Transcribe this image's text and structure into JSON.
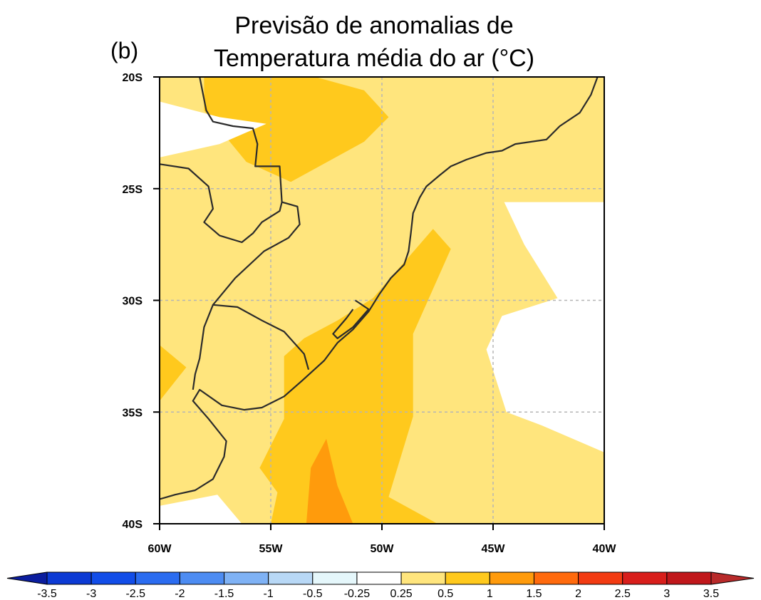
{
  "title_line1": "Previsão de anomalias de",
  "title_line2": "Temperatura média do ar (°C)",
  "panel_label": "(b)",
  "chart_data": {
    "type": "heatmap",
    "title": "Previsão de anomalias de Temperatura média do ar (°C)",
    "lon_range": [
      -60,
      -40
    ],
    "lat_range": [
      -40,
      -20
    ],
    "grid": true,
    "lon_ticks": [
      {
        "value": -60,
        "label": "60W"
      },
      {
        "value": -55,
        "label": "55W"
      },
      {
        "value": -50,
        "label": "50W"
      },
      {
        "value": -45,
        "label": "45W"
      },
      {
        "value": -40,
        "label": "40W"
      }
    ],
    "lat_ticks": [
      {
        "value": -20,
        "label": "20S"
      },
      {
        "value": -25,
        "label": "25S"
      },
      {
        "value": -30,
        "label": "30S"
      },
      {
        "value": -35,
        "label": "35S"
      },
      {
        "value": -40,
        "label": "40S"
      }
    ],
    "background_class": "0.25 to 0.5",
    "regions": [
      {
        "name": "region-05-1-north",
        "level": "0.5 to 1",
        "color": "#ffc91d",
        "points": [
          [
            -58.0,
            -20
          ],
          [
            -53.0,
            -20
          ],
          [
            -50.8,
            -20.6
          ],
          [
            -49.7,
            -21.8
          ],
          [
            -50.8,
            -22.9
          ],
          [
            -54.1,
            -24.7
          ],
          [
            -56.1,
            -23.8
          ],
          [
            -58.0,
            -21.5
          ]
        ]
      },
      {
        "name": "region-05-1-west",
        "level": "0.5 to 1",
        "color": "#ffc91d",
        "points": [
          [
            -60,
            -32.0
          ],
          [
            -58.8,
            -33.0
          ],
          [
            -60,
            -34.5
          ]
        ]
      },
      {
        "name": "region-05-1-south",
        "level": "0.5 to 1",
        "color": "#ffc91d",
        "points": [
          [
            -52.0,
            -30.9
          ],
          [
            -50.4,
            -29.9
          ],
          [
            -47.7,
            -26.8
          ],
          [
            -46.9,
            -27.7
          ],
          [
            -48.6,
            -31.5
          ],
          [
            -48.6,
            -35.2
          ],
          [
            -49.7,
            -38.8
          ],
          [
            -47.5,
            -40
          ],
          [
            -55.0,
            -40
          ],
          [
            -54.7,
            -38.6
          ],
          [
            -55.5,
            -37.5
          ],
          [
            -54.4,
            -35.3
          ],
          [
            -54.4,
            -32.5
          ],
          [
            -53.5,
            -31.7
          ]
        ]
      },
      {
        "name": "region-1-15",
        "level": "1 to 1.5",
        "color": "#ff9b0c",
        "points": [
          [
            -53.2,
            -37.5
          ],
          [
            -52.5,
            -36.2
          ],
          [
            -52.0,
            -38.3
          ],
          [
            -51.3,
            -40
          ],
          [
            -53.4,
            -40
          ]
        ]
      },
      {
        "name": "region-025-white-nw",
        "level": "-0.25 to 0.25",
        "color": "#ffffff",
        "points": [
          [
            -60,
            -21.1
          ],
          [
            -57.3,
            -21.8
          ],
          [
            -55.2,
            -22.1
          ],
          [
            -57.3,
            -23.0
          ],
          [
            -60,
            -23.6
          ]
        ]
      },
      {
        "name": "region-025-white-east",
        "level": "-0.25 to 0.25",
        "color": "#ffffff",
        "points": [
          [
            -40,
            -25.6
          ],
          [
            -44.5,
            -25.6
          ],
          [
            -43.6,
            -27.5
          ],
          [
            -42.1,
            -29.9
          ],
          [
            -44.6,
            -30.7
          ],
          [
            -45.3,
            -32.2
          ],
          [
            -44.4,
            -35.0
          ],
          [
            -42.8,
            -35.6
          ],
          [
            -40,
            -36.8
          ]
        ]
      },
      {
        "name": "region-025-white-sw",
        "level": "-0.25 to 0.25",
        "color": "#ffffff",
        "points": [
          [
            -60,
            -39.2
          ],
          [
            -57.4,
            -38.7
          ],
          [
            -56.3,
            -40
          ],
          [
            -60,
            -40
          ]
        ]
      }
    ],
    "coastlines": [
      {
        "name": "coastline-atlantic",
        "points": [
          [
            -40.3,
            -20
          ],
          [
            -40.6,
            -20.8
          ],
          [
            -41.1,
            -21.6
          ],
          [
            -42.0,
            -22.2
          ],
          [
            -42.6,
            -22.8
          ],
          [
            -44.0,
            -23.0
          ],
          [
            -44.6,
            -23.3
          ],
          [
            -45.3,
            -23.4
          ],
          [
            -46.2,
            -23.7
          ],
          [
            -46.9,
            -24.0
          ],
          [
            -47.4,
            -24.4
          ],
          [
            -48.0,
            -24.9
          ],
          [
            -48.3,
            -25.4
          ],
          [
            -48.6,
            -26.1
          ],
          [
            -48.7,
            -27.0
          ],
          [
            -48.8,
            -27.8
          ],
          [
            -49.0,
            -28.4
          ],
          [
            -49.6,
            -29.0
          ],
          [
            -50.1,
            -29.7
          ],
          [
            -50.6,
            -30.5
          ],
          [
            -51.3,
            -31.3
          ],
          [
            -52.0,
            -31.9
          ],
          [
            -52.6,
            -32.7
          ],
          [
            -53.6,
            -33.6
          ],
          [
            -54.4,
            -34.3
          ],
          [
            -55.4,
            -34.8
          ],
          [
            -56.2,
            -34.9
          ],
          [
            -57.2,
            -34.7
          ],
          [
            -58.2,
            -34.0
          ],
          [
            -58.5,
            -34.5
          ],
          [
            -57.8,
            -35.3
          ],
          [
            -57.0,
            -36.3
          ],
          [
            -57.1,
            -37.0
          ],
          [
            -57.6,
            -38.0
          ],
          [
            -58.4,
            -38.5
          ],
          [
            -59.3,
            -38.7
          ],
          [
            -60,
            -38.9
          ]
        ]
      },
      {
        "name": "lagoa-dos-patos",
        "points": [
          [
            -51.2,
            -30.0
          ],
          [
            -50.6,
            -30.4
          ],
          [
            -51.3,
            -31.2
          ],
          [
            -52.0,
            -31.7
          ],
          [
            -52.2,
            -31.5
          ],
          [
            -51.6,
            -30.8
          ],
          [
            -51.3,
            -30.4
          ]
        ]
      },
      {
        "name": "border-brazil-west",
        "points": [
          [
            -58.2,
            -20
          ],
          [
            -58.0,
            -21.0
          ],
          [
            -57.9,
            -21.5
          ],
          [
            -57.6,
            -22.0
          ],
          [
            -56.7,
            -22.2
          ],
          [
            -55.8,
            -22.3
          ],
          [
            -55.6,
            -23.0
          ],
          [
            -55.7,
            -24.0
          ],
          [
            -54.6,
            -24.0
          ],
          [
            -54.5,
            -25.6
          ],
          [
            -53.8,
            -25.8
          ],
          [
            -53.7,
            -26.6
          ],
          [
            -54.2,
            -27.2
          ],
          [
            -55.3,
            -27.8
          ],
          [
            -56.6,
            -29.0
          ],
          [
            -57.6,
            -30.2
          ],
          [
            -56.5,
            -30.3
          ],
          [
            -55.4,
            -30.9
          ],
          [
            -54.4,
            -31.4
          ],
          [
            -53.5,
            -32.4
          ],
          [
            -53.3,
            -33.1
          ]
        ]
      },
      {
        "name": "border-uruguay-argentina",
        "points": [
          [
            -57.6,
            -30.2
          ],
          [
            -58.0,
            -31.2
          ],
          [
            -58.2,
            -32.6
          ],
          [
            -58.4,
            -33.3
          ],
          [
            -58.5,
            -34.0
          ]
        ]
      },
      {
        "name": "border-paraguay",
        "points": [
          [
            -60,
            -23.9
          ],
          [
            -58.7,
            -24.1
          ],
          [
            -57.8,
            -24.9
          ],
          [
            -57.6,
            -25.9
          ],
          [
            -58.0,
            -26.5
          ],
          [
            -57.3,
            -27.1
          ],
          [
            -56.3,
            -27.4
          ],
          [
            -55.8,
            -27.0
          ],
          [
            -55.4,
            -26.5
          ],
          [
            -54.6,
            -26.0
          ],
          [
            -54.5,
            -25.6
          ]
        ]
      }
    ],
    "colorbar": {
      "labels": [
        "-3.5",
        "-3",
        "-2.5",
        "-2",
        "-1.5",
        "-1",
        "-0.5",
        "-0.25",
        "0.25",
        "0.5",
        "1",
        "1.5",
        "2",
        "2.5",
        "3",
        "3.5"
      ],
      "colors": [
        "#0b1d9e",
        "#0c3ad4",
        "#124de8",
        "#2b6cf0",
        "#4d8cf2",
        "#7fb2f5",
        "#b8d8f6",
        "#e5f7fb",
        "#ffffff",
        "#ffe57d",
        "#ffc91d",
        "#ff9b0c",
        "#ff6a0d",
        "#f23b12",
        "#d81e1b",
        "#c0171b",
        "#b82a2a"
      ]
    }
  }
}
